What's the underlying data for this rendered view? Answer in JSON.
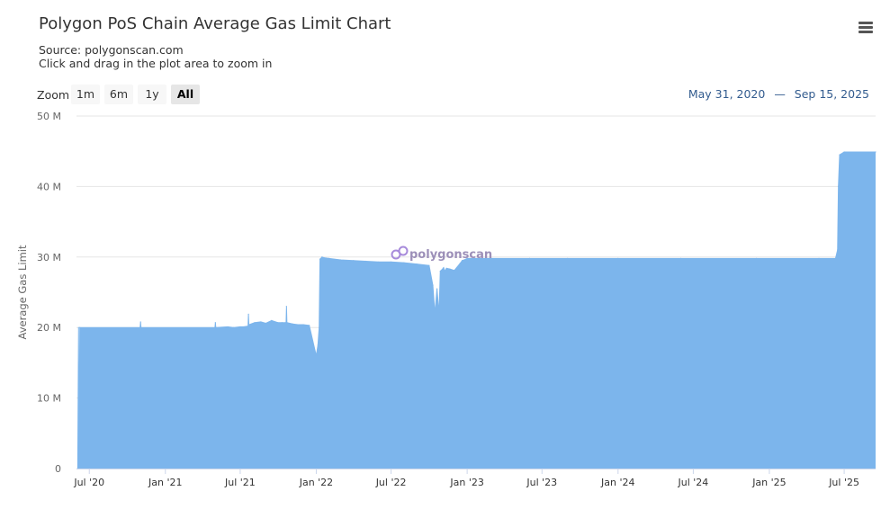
{
  "header": {
    "title": "Polygon PoS Chain Average Gas Limit Chart",
    "source": "Source: polygonscan.com",
    "hint": "Click and drag in the plot area to zoom in",
    "menu_icon": "hamburger-menu-icon"
  },
  "zoom": {
    "label": "Zoom",
    "buttons": [
      "1m",
      "6m",
      "1y",
      "All"
    ],
    "active": "All"
  },
  "range": {
    "from": "May 31, 2020",
    "separator": "—",
    "to": "Sep 15, 2025"
  },
  "watermark": "polygonscan",
  "colors": {
    "area_fill": "#7cb5ec",
    "grid": "#e6e6e6",
    "accent": "#335c8f"
  },
  "chart_data": {
    "type": "area",
    "title": "Polygon PoS Chain Average Gas Limit Chart",
    "xlabel": "",
    "ylabel": "Average Gas Limit",
    "xlim": [
      "2020-05-31",
      "2025-09-15"
    ],
    "ylim": [
      0,
      50000000
    ],
    "y_ticks": [
      {
        "value": 0,
        "label": "0"
      },
      {
        "value": 10000000,
        "label": "10 M"
      },
      {
        "value": 20000000,
        "label": "20 M"
      },
      {
        "value": 30000000,
        "label": "30 M"
      },
      {
        "value": 40000000,
        "label": "40 M"
      },
      {
        "value": 50000000,
        "label": "50 M"
      }
    ],
    "x_ticks": [
      {
        "date": "2020-07-01",
        "label": "Jul '20"
      },
      {
        "date": "2021-01-01",
        "label": "Jan '21"
      },
      {
        "date": "2021-07-01",
        "label": "Jul '21"
      },
      {
        "date": "2022-01-01",
        "label": "Jan '22"
      },
      {
        "date": "2022-07-01",
        "label": "Jul '22"
      },
      {
        "date": "2023-01-01",
        "label": "Jan '23"
      },
      {
        "date": "2023-07-01",
        "label": "Jul '23"
      },
      {
        "date": "2024-01-01",
        "label": "Jan '24"
      },
      {
        "date": "2024-07-01",
        "label": "Jul '24"
      },
      {
        "date": "2025-01-01",
        "label": "Jan '25"
      },
      {
        "date": "2025-07-01",
        "label": "Jul '25"
      }
    ],
    "grid": true,
    "legend": "none",
    "series": [
      {
        "x": [
          "2020-06-03",
          "2020-06-05",
          "2020-06-06",
          "2020-06-08",
          "2020-11-01",
          "2020-11-02",
          "2020-11-03",
          "2021-05-01",
          "2021-05-02",
          "2021-05-03",
          "2021-06-01",
          "2021-06-15",
          "2021-07-01",
          "2021-07-10",
          "2021-07-20",
          "2021-07-21",
          "2021-07-22",
          "2021-08-05",
          "2021-08-20",
          "2021-09-01",
          "2021-09-15",
          "2021-09-30",
          "2021-10-10",
          "2021-10-20",
          "2021-10-21",
          "2021-10-22",
          "2021-11-05",
          "2021-11-20",
          "2021-12-01",
          "2021-12-15",
          "2022-01-01",
          "2022-01-05",
          "2022-01-08",
          "2022-01-10",
          "2022-01-15",
          "2022-01-20",
          "2022-02-01",
          "2022-03-01",
          "2022-04-01",
          "2022-05-01",
          "2022-06-01",
          "2022-07-01",
          "2022-08-01",
          "2022-09-01",
          "2022-10-01",
          "2022-10-10",
          "2022-10-15",
          "2022-10-20",
          "2022-10-25",
          "2022-10-28",
          "2022-11-01",
          "2022-11-05",
          "2022-11-08",
          "2022-11-12",
          "2022-11-20",
          "2022-12-01",
          "2022-12-15",
          "2022-12-20",
          "2022-12-25",
          "2023-01-01",
          "2023-03-01",
          "2023-06-01",
          "2023-09-01",
          "2024-01-01",
          "2024-06-01",
          "2024-12-01",
          "2025-05-01",
          "2025-06-10",
          "2025-06-15",
          "2025-06-17",
          "2025-06-20",
          "2025-07-01",
          "2025-09-15"
        ],
        "y": [
          0,
          20000000,
          0,
          20000000,
          20000000,
          20800000,
          20000000,
          20000000,
          20700000,
          20000000,
          20100000,
          20000000,
          20100000,
          20100000,
          20200000,
          21900000,
          20400000,
          20700000,
          20800000,
          20600000,
          21000000,
          20700000,
          20700000,
          20700000,
          23000000,
          20700000,
          20500000,
          20400000,
          20400000,
          20300000,
          16000000,
          17500000,
          20000000,
          29700000,
          30000000,
          29900000,
          29800000,
          29600000,
          29500000,
          29400000,
          29300000,
          29300000,
          29200000,
          29000000,
          28800000,
          26000000,
          22000000,
          25500000,
          22000000,
          28000000,
          28200000,
          28500000,
          28000000,
          28400000,
          28300000,
          28100000,
          29100000,
          29500000,
          29600000,
          29800000,
          29800000,
          29800000,
          29800000,
          29800000,
          29800000,
          29800000,
          29800000,
          29800000,
          31000000,
          40000000,
          44500000,
          44900000,
          44900000
        ]
      }
    ]
  }
}
